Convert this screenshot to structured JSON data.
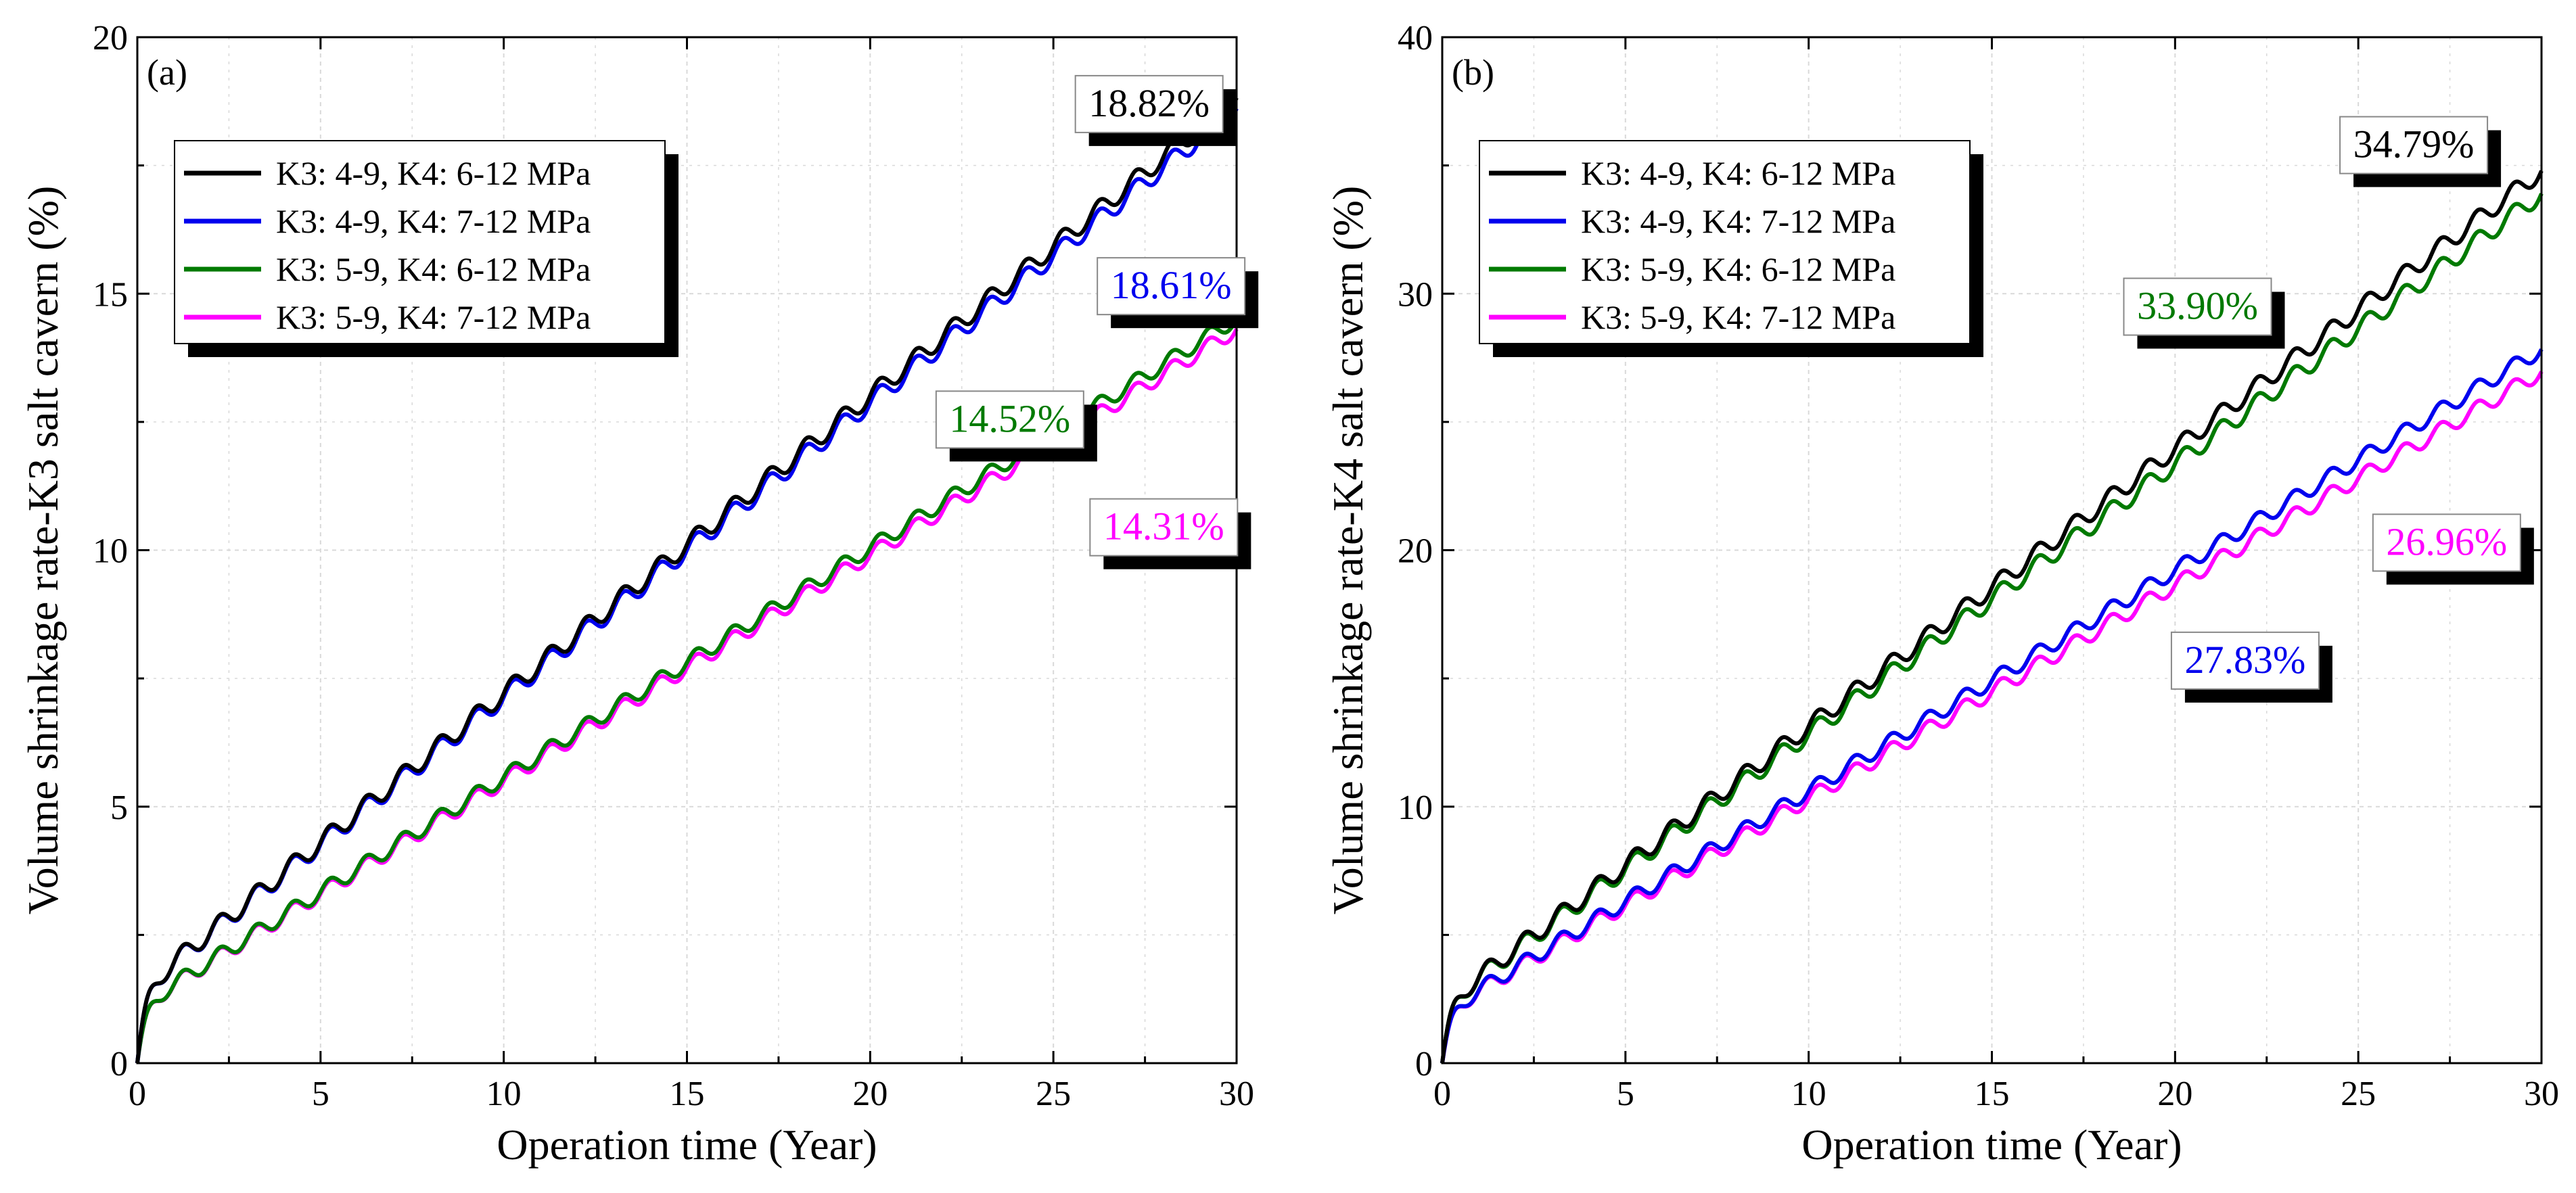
{
  "colors": {
    "black": "#000000",
    "blue": "#0000ee",
    "green": "#007a00",
    "magenta": "#ff00ff",
    "grid": "#d9d9d9"
  },
  "chart_data": [
    {
      "type": "line",
      "panel_label": "(a)",
      "xlabel": "Operation time (Year)",
      "ylabel": "Volume shrinkage rate-K3 salt cavern (%)",
      "xlim": [
        0,
        30
      ],
      "ylim": [
        0,
        20
      ],
      "x_ticks": [
        "0",
        "5",
        "10",
        "15",
        "20",
        "25",
        "30"
      ],
      "y_ticks": [
        "0",
        "5",
        "10",
        "15",
        "20"
      ],
      "grid": true,
      "legend_position": "top-left",
      "series": [
        {
          "name": "K3: 4-9, K4: 6-12 MPa",
          "color": "#000000",
          "final_value": 18.82,
          "initial_jump": 1.4,
          "step_amplitude": 0.18
        },
        {
          "name": "K3: 4-9, K4: 7-12 MPa",
          "color": "#0000ee",
          "final_value": 18.61,
          "initial_jump": 1.4,
          "step_amplitude": 0.18
        },
        {
          "name": "K3: 5-9, K4: 6-12 MPa",
          "color": "#007a00",
          "final_value": 14.52,
          "initial_jump": 1.1,
          "step_amplitude": 0.15
        },
        {
          "name": "K3: 5-9, K4: 7-12 MPa",
          "color": "#ff00ff",
          "final_value": 14.31,
          "initial_jump": 1.1,
          "step_amplitude": 0.15
        }
      ],
      "annotations": [
        {
          "text": "18.82%",
          "color": "#000000",
          "x": 25.6,
          "y": 19.25
        },
        {
          "text": "18.61%",
          "color": "#0000ee",
          "x": 26.2,
          "y": 15.7
        },
        {
          "text": "14.52%",
          "color": "#007a00",
          "x": 21.8,
          "y": 13.1
        },
        {
          "text": "14.31%",
          "color": "#ff00ff",
          "x": 26.0,
          "y": 11.0
        }
      ]
    },
    {
      "type": "line",
      "panel_label": "(b)",
      "xlabel": "Operation time (Year)",
      "ylabel": "Volume shrinkage rate-K4 salt cavern (%)",
      "xlim": [
        0,
        30
      ],
      "ylim": [
        0,
        40
      ],
      "x_ticks": [
        "0",
        "5",
        "10",
        "15",
        "20",
        "25",
        "30"
      ],
      "y_ticks": [
        "0",
        "10",
        "20",
        "30",
        "40"
      ],
      "grid": true,
      "legend_position": "top-left",
      "series": [
        {
          "name": "K3: 4-9, K4: 6-12 MPa",
          "color": "#000000",
          "final_value": 34.79,
          "initial_jump": 2.3,
          "step_amplitude": 0.35
        },
        {
          "name": "K3: 4-9, K4: 7-12 MPa",
          "color": "#0000ee",
          "final_value": 27.83,
          "initial_jump": 2.0,
          "step_amplitude": 0.3
        },
        {
          "name": "K3: 5-9, K4: 6-12 MPa",
          "color": "#007a00",
          "final_value": 33.9,
          "initial_jump": 2.3,
          "step_amplitude": 0.35
        },
        {
          "name": "K3: 5-9, K4: 7-12 MPa",
          "color": "#ff00ff",
          "final_value": 26.96,
          "initial_jump": 2.0,
          "step_amplitude": 0.3
        }
      ],
      "annotations": [
        {
          "text": "34.79%",
          "color": "#000000",
          "x": 24.5,
          "y": 36.9
        },
        {
          "text": "33.90%",
          "color": "#007a00",
          "x": 18.6,
          "y": 30.6
        },
        {
          "text": "26.96%",
          "color": "#ff00ff",
          "x": 25.4,
          "y": 21.4
        },
        {
          "text": "27.83%",
          "color": "#0000ee",
          "x": 19.9,
          "y": 16.8
        }
      ]
    }
  ]
}
